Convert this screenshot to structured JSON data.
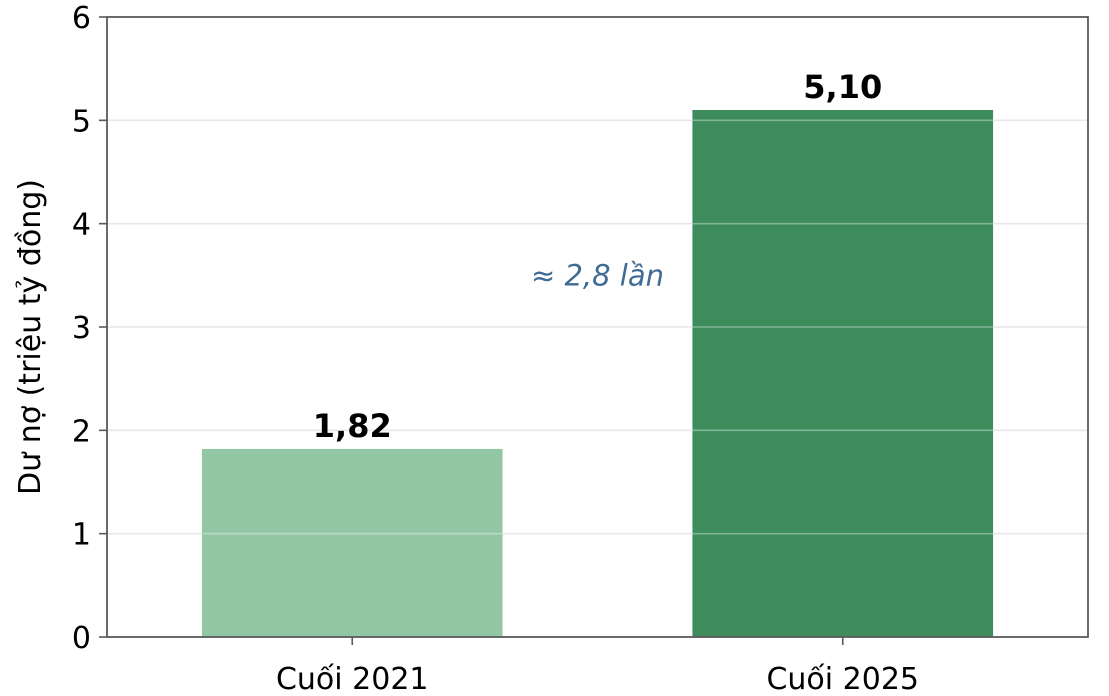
{
  "chart_data": {
    "type": "bar",
    "categories": [
      "Cuối 2021",
      "Cuối 2025"
    ],
    "values": [
      1.82,
      5.1
    ],
    "value_labels": [
      "1,82",
      "5,10"
    ],
    "bar_colors": [
      "#93c6a5",
      "#3e8c5c"
    ],
    "ylabel": "Dư nợ (triệu tỷ đồng)",
    "xlabel": "",
    "title": "",
    "ylim": [
      0,
      6
    ],
    "yticks": [
      0,
      1,
      2,
      3,
      4,
      5,
      6
    ],
    "grid": "horizontal",
    "annotation": {
      "text": "≈ 2,8 lần",
      "color": "#3f6b94",
      "y": 3.5
    }
  }
}
